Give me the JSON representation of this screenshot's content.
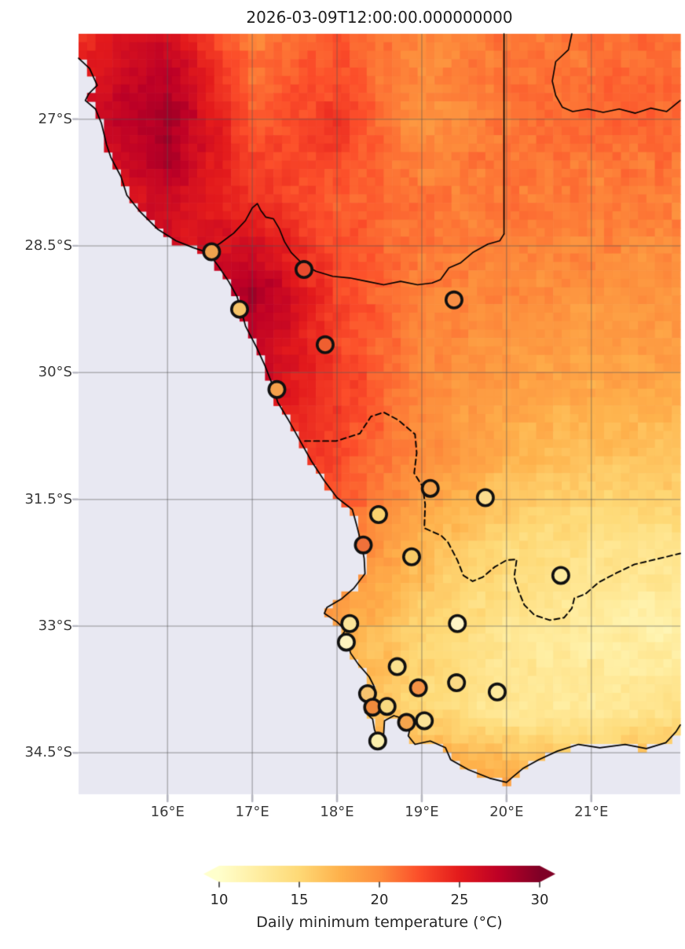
{
  "title": "2026-03-09T12:00:00.000000000",
  "style": {
    "background": "#ffffff",
    "ocean": "#e8e8f2",
    "coastline_color": "#000000",
    "border_color": "#000000",
    "grid_color": "rgba(85,85,85,0.40)",
    "axis_tick_color": "#b5b6c0",
    "cbar_tick_color": "#262626",
    "station_edge_color": "#101010"
  },
  "chart_data": {
    "type": "heatmap",
    "title": "2026-03-09T12:00:00.000000000",
    "region_note": "south-western Africa, gridded daily minimum temperature with station markers",
    "extent": {
      "lon_min": 14.95,
      "lon_max": 22.05,
      "lat_min": -34.99,
      "lat_max": -25.99
    },
    "xticks": [
      {
        "value": 16,
        "label": "16°E"
      },
      {
        "value": 17,
        "label": "17°E"
      },
      {
        "value": 18,
        "label": "18°E"
      },
      {
        "value": 19,
        "label": "19°E"
      },
      {
        "value": 20,
        "label": "20°E"
      },
      {
        "value": 21,
        "label": "21°E"
      }
    ],
    "yticks": [
      {
        "value": -27,
        "label": "27°S"
      },
      {
        "value": -28.5,
        "label": "28.5°S"
      },
      {
        "value": -30,
        "label": "30°S"
      },
      {
        "value": -31.5,
        "label": "31.5°S"
      },
      {
        "value": -33,
        "label": "33°S"
      },
      {
        "value": -34.5,
        "label": "34.5°S"
      }
    ],
    "colorbar": {
      "label": "Daily minimum temperature (°C)",
      "vmin": 10,
      "vmax": 30,
      "ticks": [
        10,
        15,
        20,
        25,
        30
      ],
      "colormap": "YlOrRd",
      "extend": "both"
    },
    "grid": {
      "lons": [
        15,
        16,
        17,
        18,
        19,
        20,
        21,
        22
      ],
      "lats": [
        -26,
        -27,
        -28,
        -29,
        -30,
        -31,
        -32,
        -33,
        -34,
        -35
      ],
      "values": [
        [
          24.5,
          26.0,
          20.5,
          22.0,
          20.0,
          21.0,
          21.0,
          21.5
        ],
        [
          26.0,
          29.0,
          22.0,
          23.5,
          19.5,
          21.0,
          21.5,
          21.5
        ],
        [
          24.0,
          26.5,
          24.0,
          22.0,
          21.0,
          21.0,
          20.5,
          20.5
        ],
        [
          23.0,
          25.0,
          28.5,
          23.0,
          20.5,
          20.0,
          19.5,
          19.5
        ],
        [
          22.0,
          24.0,
          27.0,
          23.5,
          20.0,
          19.0,
          18.5,
          18.5
        ],
        [
          21.0,
          22.0,
          24.5,
          23.0,
          20.0,
          17.5,
          16.5,
          16.5
        ],
        [
          20.0,
          21.0,
          23.5,
          21.5,
          17.5,
          15.0,
          14.0,
          14.0
        ],
        [
          19.0,
          20.0,
          21.0,
          18.5,
          15.5,
          13.5,
          12.5,
          12.0
        ],
        [
          18.0,
          18.5,
          19.0,
          17.5,
          15.0,
          13.2,
          13.0,
          14.0
        ],
        [
          18.0,
          19.0,
          20.0,
          19.5,
          20.5,
          19.5,
          18.5,
          19.5
        ]
      ]
    },
    "stations": [
      {
        "lon": 16.52,
        "lat": -28.57,
        "temp_c": 17.5,
        "fill": "#efa24e"
      },
      {
        "lon": 17.61,
        "lat": -28.78,
        "temp_c": 23.0,
        "fill": "#e84b2e"
      },
      {
        "lon": 16.85,
        "lat": -29.25,
        "temp_c": 15.5,
        "fill": "#f6c468"
      },
      {
        "lon": 17.86,
        "lat": -29.67,
        "temp_c": 22.0,
        "fill": "#ef5f30"
      },
      {
        "lon": 19.38,
        "lat": -29.14,
        "temp_c": 19.5,
        "fill": "#f78e44"
      },
      {
        "lon": 17.29,
        "lat": -30.2,
        "temp_c": 18.0,
        "fill": "#f5a04b"
      },
      {
        "lon": 19.1,
        "lat": -31.37,
        "temp_c": 18.0,
        "fill": "#f7a34c"
      },
      {
        "lon": 19.75,
        "lat": -31.48,
        "temp_c": 14.5,
        "fill": "#fbdc8e"
      },
      {
        "lon": 18.49,
        "lat": -31.68,
        "temp_c": 15.0,
        "fill": "#fad26e"
      },
      {
        "lon": 18.31,
        "lat": -32.04,
        "temp_c": 21.0,
        "fill": "#f0713a"
      },
      {
        "lon": 18.88,
        "lat": -32.18,
        "temp_c": 15.5,
        "fill": "#f8ca66"
      },
      {
        "lon": 20.64,
        "lat": -32.4,
        "temp_c": 12.5,
        "fill": "#fcea9e"
      },
      {
        "lon": 18.15,
        "lat": -32.97,
        "temp_c": 13.5,
        "fill": "#fbe499"
      },
      {
        "lon": 19.42,
        "lat": -32.97,
        "temp_c": 10.5,
        "fill": "#fef5c6"
      },
      {
        "lon": 18.11,
        "lat": -33.19,
        "temp_c": 11.0,
        "fill": "#fef3be"
      },
      {
        "lon": 18.71,
        "lat": -33.48,
        "temp_c": 14.0,
        "fill": "#fae08e"
      },
      {
        "lon": 18.96,
        "lat": -33.73,
        "temp_c": 19.0,
        "fill": "#f59245"
      },
      {
        "lon": 19.41,
        "lat": -33.67,
        "temp_c": 14.5,
        "fill": "#fad985"
      },
      {
        "lon": 19.89,
        "lat": -33.78,
        "temp_c": 13.0,
        "fill": "#fce89c"
      },
      {
        "lon": 18.36,
        "lat": -33.8,
        "temp_c": 16.0,
        "fill": "#f6c470"
      },
      {
        "lon": 18.42,
        "lat": -33.96,
        "temp_c": 19.5,
        "fill": "#f08a3c"
      },
      {
        "lon": 18.59,
        "lat": -33.95,
        "temp_c": 15.0,
        "fill": "#f8d880"
      },
      {
        "lon": 18.82,
        "lat": -34.14,
        "temp_c": 17.5,
        "fill": "#f5a54d"
      },
      {
        "lon": 19.03,
        "lat": -34.12,
        "temp_c": 13.5,
        "fill": "#fae298"
      },
      {
        "lon": 18.48,
        "lat": -34.36,
        "temp_c": 12.0,
        "fill": "#fbefac"
      }
    ],
    "coastline": [
      [
        14.95,
        -26.28
      ],
      [
        15.08,
        -26.4
      ],
      [
        15.17,
        -26.6
      ],
      [
        15.07,
        -26.7
      ],
      [
        15.03,
        -26.78
      ],
      [
        15.15,
        -26.88
      ],
      [
        15.22,
        -27.05
      ],
      [
        15.28,
        -27.3
      ],
      [
        15.33,
        -27.45
      ],
      [
        15.45,
        -27.68
      ],
      [
        15.52,
        -27.9
      ],
      [
        15.68,
        -28.1
      ],
      [
        15.88,
        -28.3
      ],
      [
        16.1,
        -28.44
      ],
      [
        16.3,
        -28.52
      ],
      [
        16.48,
        -28.58
      ],
      [
        16.6,
        -28.74
      ],
      [
        16.72,
        -28.92
      ],
      [
        16.82,
        -29.1
      ],
      [
        16.87,
        -29.26
      ],
      [
        16.92,
        -29.45
      ],
      [
        17.05,
        -29.7
      ],
      [
        17.15,
        -29.92
      ],
      [
        17.24,
        -30.15
      ],
      [
        17.3,
        -30.35
      ],
      [
        17.42,
        -30.55
      ],
      [
        17.56,
        -30.8
      ],
      [
        17.7,
        -31.05
      ],
      [
        17.85,
        -31.28
      ],
      [
        18.0,
        -31.48
      ],
      [
        18.18,
        -31.62
      ],
      [
        18.23,
        -31.8
      ],
      [
        18.28,
        -32.0
      ],
      [
        18.32,
        -32.2
      ],
      [
        18.33,
        -32.38
      ],
      [
        18.2,
        -32.55
      ],
      [
        18.05,
        -32.68
      ],
      [
        17.88,
        -32.78
      ],
      [
        17.85,
        -32.85
      ],
      [
        18.0,
        -32.95
      ],
      [
        18.1,
        -33.05
      ],
      [
        18.04,
        -33.13
      ],
      [
        18.12,
        -33.18
      ],
      [
        18.16,
        -33.32
      ],
      [
        18.25,
        -33.45
      ],
      [
        18.38,
        -33.6
      ],
      [
        18.44,
        -33.72
      ],
      [
        18.45,
        -33.83
      ],
      [
        18.34,
        -33.9
      ],
      [
        18.33,
        -34.02
      ],
      [
        18.42,
        -34.1
      ],
      [
        18.44,
        -34.22
      ],
      [
        18.49,
        -34.37
      ],
      [
        18.55,
        -34.28
      ],
      [
        18.56,
        -34.12
      ],
      [
        18.67,
        -34.06
      ],
      [
        18.8,
        -34.1
      ],
      [
        18.87,
        -34.18
      ],
      [
        18.84,
        -34.3
      ],
      [
        18.92,
        -34.4
      ],
      [
        19.1,
        -34.36
      ],
      [
        19.28,
        -34.44
      ],
      [
        19.34,
        -34.58
      ],
      [
        19.55,
        -34.7
      ],
      [
        19.8,
        -34.8
      ],
      [
        20.0,
        -34.85
      ],
      [
        20.08,
        -34.78
      ],
      [
        20.2,
        -34.68
      ],
      [
        20.38,
        -34.58
      ],
      [
        20.6,
        -34.48
      ],
      [
        20.85,
        -34.4
      ],
      [
        21.1,
        -34.44
      ],
      [
        21.4,
        -34.4
      ],
      [
        21.65,
        -34.45
      ],
      [
        21.88,
        -34.38
      ],
      [
        22.0,
        -34.25
      ],
      [
        22.05,
        -34.17
      ]
    ],
    "borders_solid": [
      [
        [
          16.48,
          -28.55
        ],
        [
          16.62,
          -28.47
        ],
        [
          16.78,
          -28.35
        ],
        [
          16.92,
          -28.2
        ],
        [
          17.0,
          -28.05
        ],
        [
          17.06,
          -28.0
        ],
        [
          17.1,
          -28.08
        ],
        [
          17.16,
          -28.16
        ],
        [
          17.25,
          -28.18
        ],
        [
          17.32,
          -28.3
        ],
        [
          17.38,
          -28.45
        ],
        [
          17.46,
          -28.58
        ],
        [
          17.58,
          -28.7
        ],
        [
          17.75,
          -28.8
        ],
        [
          17.95,
          -28.86
        ],
        [
          18.15,
          -28.88
        ],
        [
          18.35,
          -28.92
        ],
        [
          18.55,
          -28.96
        ],
        [
          18.75,
          -28.92
        ],
        [
          18.95,
          -28.96
        ],
        [
          19.12,
          -28.94
        ],
        [
          19.22,
          -28.9
        ],
        [
          19.32,
          -28.76
        ],
        [
          19.46,
          -28.7
        ],
        [
          19.6,
          -28.58
        ],
        [
          19.78,
          -28.48
        ],
        [
          19.92,
          -28.44
        ],
        [
          19.97,
          -28.36
        ]
      ],
      [
        [
          19.97,
          -28.36
        ],
        [
          19.97,
          -25.99
        ]
      ],
      [
        [
          20.77,
          -25.99
        ],
        [
          20.73,
          -26.18
        ],
        [
          20.58,
          -26.32
        ],
        [
          20.54,
          -26.55
        ],
        [
          20.58,
          -26.72
        ],
        [
          20.66,
          -26.86
        ],
        [
          20.78,
          -26.91
        ],
        [
          20.96,
          -26.88
        ],
        [
          21.14,
          -26.92
        ],
        [
          21.33,
          -26.88
        ],
        [
          21.52,
          -26.93
        ],
        [
          21.7,
          -26.87
        ],
        [
          21.89,
          -26.91
        ],
        [
          22.05,
          -26.78
        ]
      ]
    ],
    "borders_dashed": [
      [
        17.62,
        -30.81
      ],
      [
        17.99,
        -30.81
      ],
      [
        18.27,
        -30.72
      ],
      [
        18.4,
        -30.52
      ],
      [
        18.55,
        -30.47
      ],
      [
        18.72,
        -30.56
      ],
      [
        18.92,
        -30.73
      ],
      [
        18.94,
        -30.95
      ],
      [
        18.91,
        -31.19
      ],
      [
        19.01,
        -31.35
      ],
      [
        19.04,
        -31.56
      ],
      [
        19.03,
        -31.84
      ],
      [
        19.23,
        -31.93
      ],
      [
        19.31,
        -32.01
      ],
      [
        19.42,
        -32.22
      ],
      [
        19.49,
        -32.4
      ],
      [
        19.6,
        -32.47
      ],
      [
        19.72,
        -32.42
      ],
      [
        19.86,
        -32.3
      ],
      [
        20.0,
        -32.22
      ],
      [
        20.12,
        -32.21
      ],
      [
        20.09,
        -32.42
      ],
      [
        20.14,
        -32.58
      ],
      [
        20.21,
        -32.75
      ],
      [
        20.33,
        -32.87
      ],
      [
        20.51,
        -32.93
      ],
      [
        20.68,
        -32.9
      ],
      [
        20.77,
        -32.79
      ],
      [
        20.8,
        -32.67
      ],
      [
        20.93,
        -32.62
      ],
      [
        21.09,
        -32.48
      ],
      [
        21.3,
        -32.37
      ],
      [
        21.51,
        -32.27
      ],
      [
        21.76,
        -32.21
      ],
      [
        22.05,
        -32.14
      ]
    ],
    "colormap_stops": [
      "#ffffcc",
      "#ffeda0",
      "#fed976",
      "#feb24c",
      "#fd8d3c",
      "#fc4e2a",
      "#e31a1c",
      "#bd0026",
      "#800026"
    ]
  }
}
